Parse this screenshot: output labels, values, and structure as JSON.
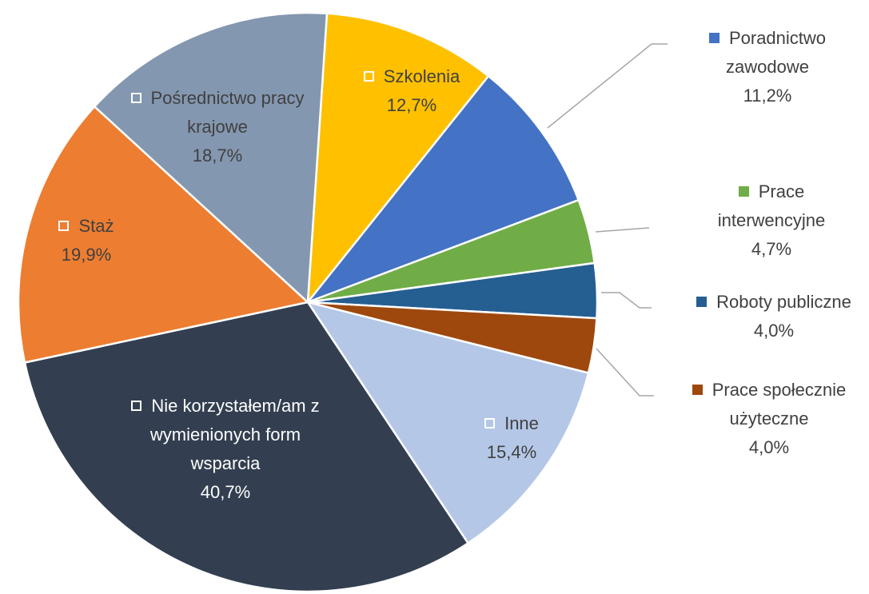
{
  "chart_data": {
    "type": "pie",
    "categories": [
      "Szkolenia",
      "Poradnictwo zawodowe",
      "Prace interwencyjne",
      "Roboty publiczne",
      "Prace społecznie użyteczne",
      "Inne",
      "Nie korzystałem/am z wymienionych form wsparcia",
      "Staż",
      "Pośrednictwo pracy krajowe"
    ],
    "values": [
      12.7,
      11.2,
      4.7,
      4.0,
      4.0,
      15.4,
      40.7,
      19.9,
      18.7
    ],
    "value_labels": [
      "12,7%",
      "11,2%",
      "4,7%",
      "4,0%",
      "4,0%",
      "15,4%",
      "40,7%",
      "19,9%",
      "18,7%"
    ],
    "colors": [
      "#FFC000",
      "#4472C4",
      "#70AD47",
      "#255E91",
      "#9E480E",
      "#B4C7E7",
      "#333F50",
      "#ED7D31",
      "#8497B0"
    ]
  }
}
